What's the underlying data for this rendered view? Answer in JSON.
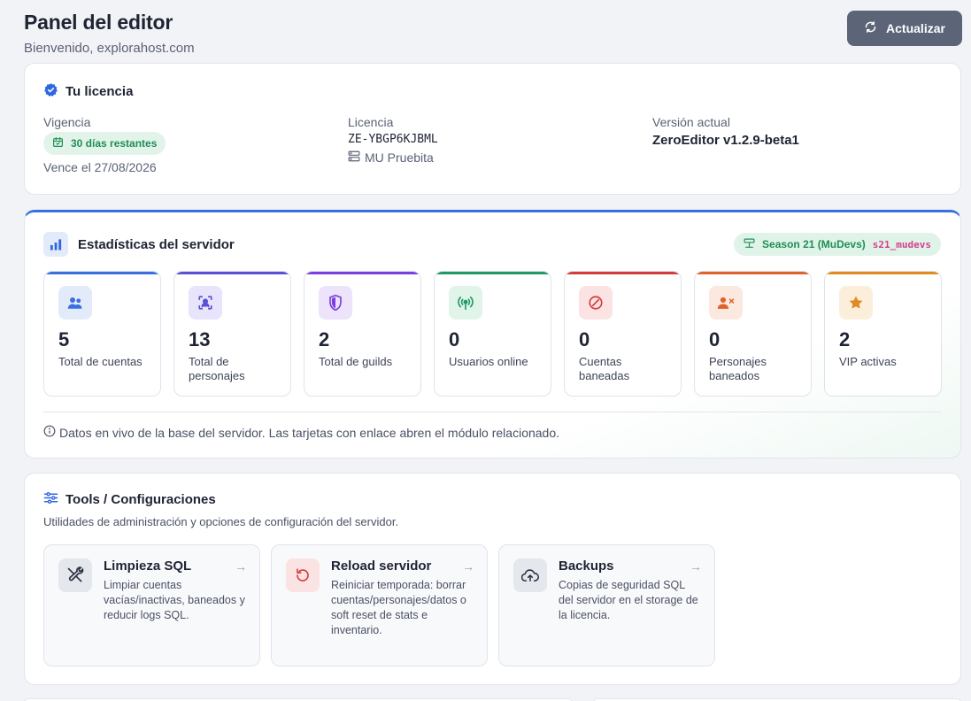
{
  "header": {
    "title": "Panel del editor",
    "welcome": "Bienvenido, explorahost.com",
    "refresh_label": "Actualizar"
  },
  "license": {
    "title": "Tu licencia",
    "validity_label": "Vigencia",
    "days_badge": "30 días restantes",
    "expires": "Vence el 27/08/2026",
    "license_label": "Licencia",
    "license_key": "ZE-YBGP6KJBML",
    "server_name": "MU Pruebita",
    "version_label": "Versión actual",
    "version": "ZeroEditor v1.2.9-beta1"
  },
  "stats": {
    "title": "Estadísticas del servidor",
    "season": "Season 21 (MuDevs)",
    "season_code": "s21_mudevs",
    "tiles": [
      {
        "value": "5",
        "label": "Total de cuentas",
        "icon": "users-icon",
        "color": "#3b6fe0",
        "bg": "#e3ebfb"
      },
      {
        "value": "13",
        "label": "Total de personajes",
        "icon": "character-icon",
        "color": "#5b4fd6",
        "bg": "#e7e4fb"
      },
      {
        "value": "2",
        "label": "Total de guilds",
        "icon": "shield-icon",
        "color": "#7b3fe0",
        "bg": "#ede3fb"
      },
      {
        "value": "0",
        "label": "Usuarios online",
        "icon": "broadcast-icon",
        "color": "#1f9a64",
        "bg": "#e0f4ea"
      },
      {
        "value": "0",
        "label": "Cuentas baneadas",
        "icon": "ban-icon",
        "color": "#d63b3b",
        "bg": "#fbe3e3"
      },
      {
        "value": "0",
        "label": "Personajes baneados",
        "icon": "user-x-icon",
        "color": "#e0622b",
        "bg": "#fbe8df"
      },
      {
        "value": "2",
        "label": "VIP activas",
        "icon": "star-icon",
        "color": "#e08a1f",
        "bg": "#fbeedb"
      }
    ],
    "note": "Datos en vivo de la base del servidor. Las tarjetas con enlace abren el módulo relacionado."
  },
  "tools": {
    "title": "Tools / Configuraciones",
    "subtitle": "Utilidades de administración y opciones de configuración del servidor.",
    "items": [
      {
        "title": "Limpieza SQL",
        "desc": "Limpiar cuentas vacías/inactivas, baneados y reducir logs SQL.",
        "icon": "tools-icon"
      },
      {
        "title": "Reload servidor",
        "desc": "Reiniciar temporada: borrar cuentas/personajes/datos o soft reset de stats e inventario.",
        "icon": "reload-icon"
      },
      {
        "title": "Backups",
        "desc": "Copias de seguridad SQL del servidor en el storage de la licencia.",
        "icon": "cloud-upload-icon"
      }
    ]
  }
}
